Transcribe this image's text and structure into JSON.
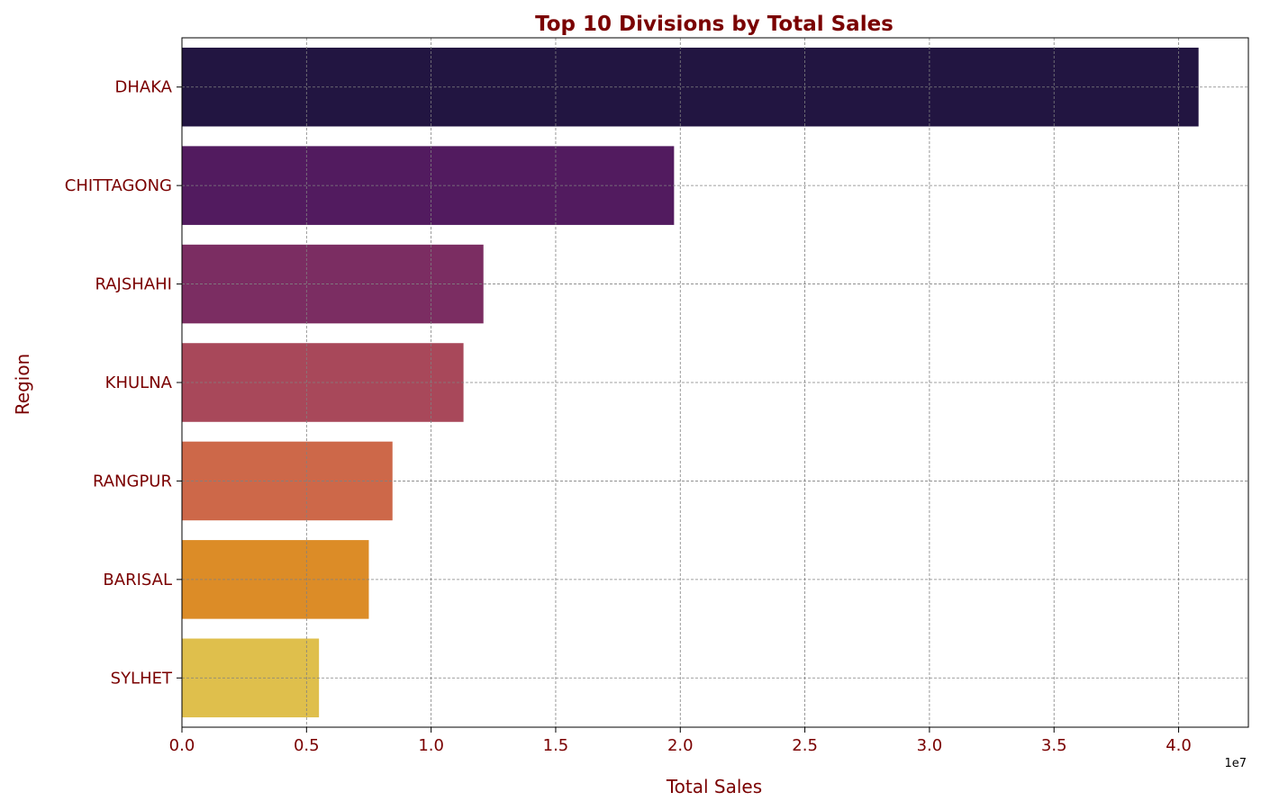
{
  "chart_data": {
    "type": "bar",
    "orientation": "horizontal",
    "title": "Top 10 Divisions by Total Sales",
    "xlabel": "Total Sales",
    "ylabel": "Region",
    "x_offset_label": "1e7",
    "x_scale_factor": 10000000,
    "xlim": [
      0,
      42800000
    ],
    "x_ticks": [
      0,
      5000000,
      10000000,
      15000000,
      20000000,
      25000000,
      30000000,
      35000000,
      40000000
    ],
    "x_tick_labels": [
      "0.0",
      "0.5",
      "1.0",
      "1.5",
      "2.0",
      "2.5",
      "3.0",
      "3.5",
      "4.0"
    ],
    "categories": [
      "DHAKA",
      "CHITTAGONG",
      "RAJSHAHI",
      "KHULNA",
      "RANGPUR",
      "BARISAL",
      "SYLHET"
    ],
    "values": [
      40800000,
      19750000,
      12100000,
      11300000,
      8450000,
      7500000,
      5500000
    ],
    "colors": [
      "#221541",
      "#521b5f",
      "#7b2d62",
      "#a8485a",
      "#cd6849",
      "#dc8c27",
      "#dfbf4c"
    ],
    "grid": true,
    "text_color": "#7a0000"
  }
}
